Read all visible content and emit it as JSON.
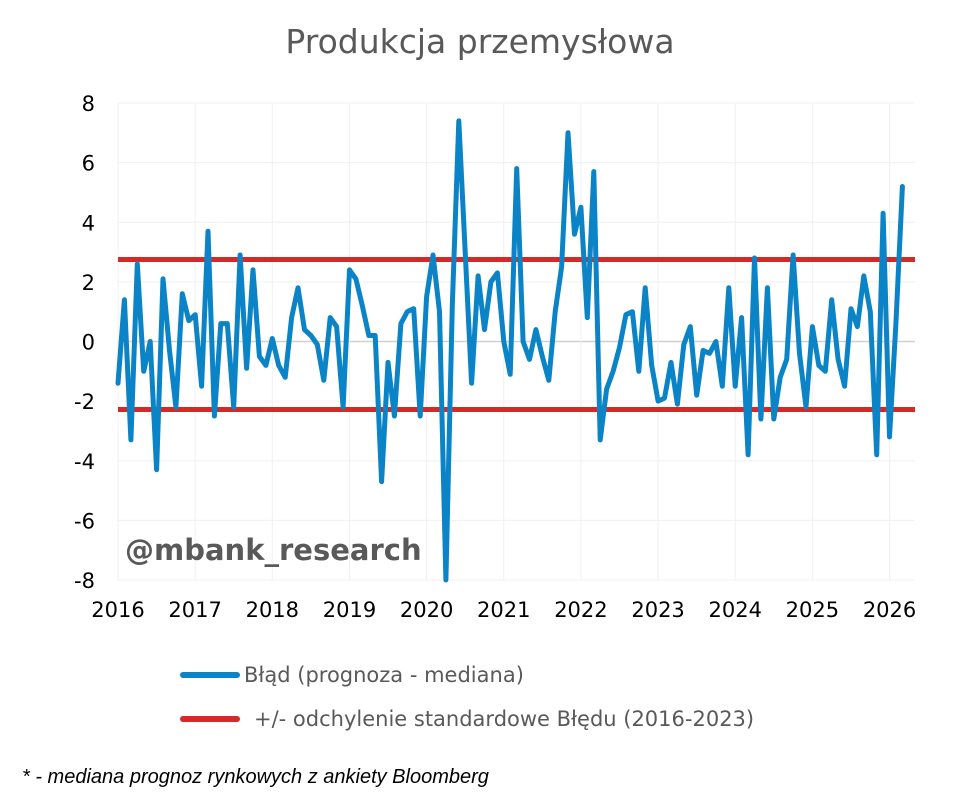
{
  "chart_data": {
    "type": "line",
    "title": "Produkcja przemysłowa",
    "ylim": [
      -8,
      8
    ],
    "yticks": [
      8,
      6,
      4,
      2,
      0,
      -2,
      -4,
      -6,
      -8
    ],
    "xlim": [
      2016,
      2026.33
    ],
    "xticks": [
      2016,
      2017,
      2018,
      2019,
      2020,
      2021,
      2022,
      2023,
      2024,
      2025,
      2026
    ],
    "grid": true,
    "legend_position": "bottom",
    "series": [
      {
        "name": "Błąd (prognoza - mediana)",
        "color": "#0a84c6",
        "x": [
          2016.0,
          2016.083,
          2016.167,
          2016.25,
          2016.333,
          2016.417,
          2016.5,
          2016.583,
          2016.667,
          2016.75,
          2016.833,
          2016.917,
          2017.0,
          2017.083,
          2017.167,
          2017.25,
          2017.333,
          2017.417,
          2017.5,
          2017.583,
          2017.667,
          2017.75,
          2017.833,
          2017.917,
          2018.0,
          2018.083,
          2018.167,
          2018.25,
          2018.333,
          2018.417,
          2018.5,
          2018.583,
          2018.667,
          2018.75,
          2018.833,
          2018.917,
          2019.0,
          2019.083,
          2019.167,
          2019.25,
          2019.333,
          2019.417,
          2019.5,
          2019.583,
          2019.667,
          2019.75,
          2019.833,
          2019.917,
          2020.0,
          2020.083,
          2020.167,
          2020.25,
          2020.333,
          2020.417,
          2020.5,
          2020.583,
          2020.667,
          2020.75,
          2020.833,
          2020.917,
          2021.0,
          2021.083,
          2021.167,
          2021.25,
          2021.333,
          2021.417,
          2021.5,
          2021.583,
          2021.667,
          2021.75,
          2021.833,
          2021.917,
          2022.0,
          2022.083,
          2022.167,
          2022.25,
          2022.333,
          2022.417,
          2022.5,
          2022.583,
          2022.667,
          2022.75,
          2022.833,
          2022.917,
          2023.0,
          2023.083,
          2023.167,
          2023.25,
          2023.333,
          2023.417,
          2023.5,
          2023.583,
          2023.667,
          2023.75,
          2023.833,
          2023.917,
          2024.0,
          2024.083,
          2024.167,
          2024.25,
          2024.333,
          2024.417,
          2024.5,
          2024.583,
          2024.667,
          2024.75,
          2024.833,
          2024.917,
          2025.0,
          2025.083,
          2025.167,
          2025.25,
          2025.333,
          2025.417,
          2025.5,
          2025.583,
          2025.667,
          2025.75,
          2025.833,
          2025.917,
          2026.0,
          2026.083,
          2026.167
        ],
        "values": [
          -1.4,
          1.4,
          -3.3,
          2.6,
          -1.0,
          0.0,
          -4.3,
          2.1,
          -0.3,
          -2.2,
          1.6,
          0.7,
          0.9,
          -1.5,
          3.7,
          -2.5,
          0.6,
          0.6,
          -2.2,
          2.9,
          -0.9,
          2.4,
          -0.5,
          -0.8,
          0.1,
          -0.8,
          -1.2,
          0.8,
          1.8,
          0.4,
          0.2,
          -0.1,
          -1.3,
          0.8,
          0.5,
          -2.2,
          2.4,
          2.1,
          1.2,
          0.2,
          0.2,
          -4.7,
          -0.7,
          -2.5,
          0.6,
          1.0,
          1.1,
          -2.5,
          1.5,
          2.9,
          1.0,
          -8.0,
          1.2,
          7.4,
          3.0,
          -1.4,
          2.2,
          0.4,
          2.0,
          2.3,
          0.0,
          -1.1,
          5.8,
          0.0,
          -0.6,
          0.4,
          -0.5,
          -1.3,
          1.0,
          2.5,
          7.0,
          3.6,
          4.5,
          0.8,
          5.7,
          -3.3,
          -1.6,
          -1.0,
          -0.2,
          0.9,
          1.0,
          -1.0,
          1.8,
          -0.8,
          -2.0,
          -1.9,
          -0.7,
          -2.1,
          -0.1,
          0.5,
          -1.8,
          -0.3,
          -0.4,
          0.0,
          -1.5,
          1.8,
          -1.5,
          0.8,
          -3.8,
          2.8,
          -2.6,
          1.8,
          -2.6,
          -1.2,
          -0.6,
          2.9,
          -0.4,
          -2.2,
          0.5,
          -0.8,
          -1.0,
          1.4,
          -0.6,
          -1.5,
          1.1,
          0.5,
          2.2,
          1.0,
          -3.8,
          4.3,
          -3.2,
          0.6,
          5.2
        ]
      },
      {
        "name": "+/- odchylenie standardowe Błędu (2016-2023)",
        "color": "#d62828",
        "bands": [
          2.75,
          -2.28
        ]
      }
    ]
  },
  "watermark": "@mbank_research",
  "footnote": "* - mediana prognoz rynkowych z ankiety Bloomberg"
}
